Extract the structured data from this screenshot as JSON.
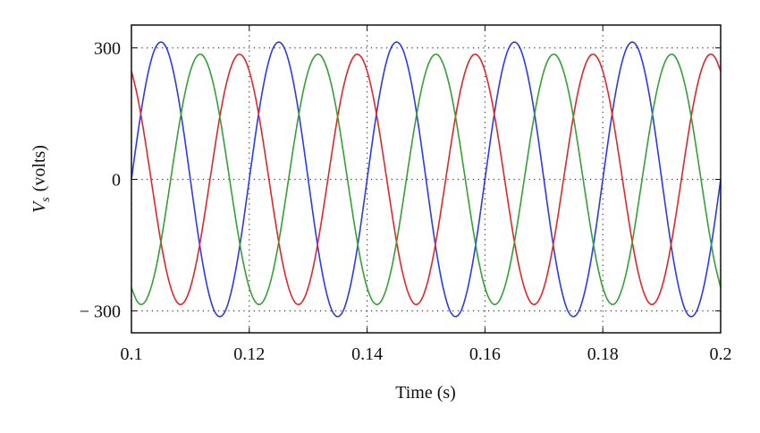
{
  "chart_data": {
    "type": "line",
    "xlabel": "Time (s)",
    "ylabel": {
      "symbol": "V",
      "subscript": "s",
      "unit": "(volts)"
    },
    "xlim": [
      0.1,
      0.2
    ],
    "xticks": [
      0.1,
      0.12,
      0.14,
      0.16,
      0.18,
      0.2
    ],
    "ylim": [
      -350,
      352
    ],
    "yticks": [
      {
        "value": -300,
        "label": "− 300"
      },
      0,
      300
    ],
    "grid": true,
    "x": [
      0.1,
      0.101,
      0.102,
      0.103,
      0.104,
      0.105,
      0.106,
      0.107,
      0.108,
      0.109,
      0.11,
      0.111,
      0.112,
      0.113,
      0.114,
      0.115,
      0.116,
      0.117,
      0.118,
      0.119,
      0.12,
      0.121,
      0.122,
      0.123,
      0.124,
      0.125,
      0.126,
      0.127,
      0.128,
      0.129,
      0.13,
      0.131,
      0.132,
      0.133,
      0.134,
      0.135,
      0.136,
      0.137,
      0.138,
      0.139,
      0.14,
      0.141,
      0.142,
      0.143,
      0.144,
      0.145,
      0.146,
      0.147,
      0.148,
      0.149,
      0.15,
      0.151,
      0.152,
      0.153,
      0.154,
      0.155,
      0.156,
      0.157,
      0.158,
      0.159,
      0.16,
      0.161,
      0.162,
      0.163,
      0.164,
      0.165,
      0.166,
      0.167,
      0.168,
      0.169,
      0.17,
      0.171,
      0.172,
      0.173,
      0.174,
      0.175,
      0.176,
      0.177,
      0.178,
      0.179,
      0.18,
      0.181,
      0.182,
      0.183,
      0.184,
      0.185,
      0.186,
      0.187,
      0.188,
      0.189,
      0.19,
      0.191,
      0.192,
      0.193,
      0.194,
      0.195,
      0.196,
      0.197,
      0.198,
      0.199,
      0.2
    ],
    "series": [
      {
        "color": "#2b3af0",
        "values": [
          0,
          97,
          184,
          253,
          298,
          313,
          298,
          253,
          184,
          97,
          0,
          -97,
          -184,
          -253,
          -298,
          -313,
          -298,
          -253,
          -184,
          -97,
          0,
          97,
          184,
          253,
          298,
          313,
          298,
          253,
          184,
          97,
          0,
          -97,
          -184,
          -253,
          -298,
          -313,
          -298,
          -253,
          -184,
          -97,
          0,
          97,
          184,
          253,
          298,
          313,
          298,
          253,
          184,
          97,
          0,
          -97,
          -184,
          -253,
          -298,
          -313,
          -298,
          -253,
          -184,
          -97,
          0,
          97,
          184,
          253,
          298,
          313,
          298,
          253,
          184,
          97,
          0,
          -97,
          -184,
          -253,
          -298,
          -313,
          -298,
          -253,
          -184,
          -97,
          0,
          97,
          184,
          253,
          298,
          313,
          298,
          253,
          184,
          97,
          0,
          -97,
          -184,
          -253,
          -298,
          -313,
          -298,
          -253,
          -184,
          -97,
          0
        ]
      },
      {
        "color": "#e3262b",
        "values": [
          247,
          191,
          116,
          30,
          -59,
          -143,
          -212,
          -260,
          -284,
          -279,
          -247,
          -191,
          -116,
          -30,
          59,
          143,
          212,
          260,
          284,
          279,
          247,
          191,
          116,
          30,
          -59,
          -143,
          -212,
          -260,
          -284,
          -279,
          -247,
          -191,
          -116,
          -30,
          59,
          143,
          212,
          260,
          284,
          279,
          247,
          191,
          116,
          30,
          -59,
          -143,
          -212,
          -260,
          -284,
          -279,
          -247,
          -191,
          -116,
          -30,
          59,
          143,
          212,
          260,
          284,
          279,
          247,
          191,
          116,
          30,
          -59,
          -143,
          -212,
          -260,
          -284,
          -279,
          -247,
          -191,
          -116,
          -30,
          59,
          143,
          212,
          260,
          284,
          279,
          247,
          191,
          116,
          30,
          -59,
          -143,
          -212,
          -260,
          -284,
          -279,
          -247,
          -191,
          -116,
          -30,
          59,
          143,
          212,
          260,
          284,
          279,
          247
        ]
      },
      {
        "color": "#33a135",
        "values": [
          -247,
          -279,
          -284,
          -260,
          -212,
          -143,
          -59,
          30,
          116,
          191,
          247,
          279,
          284,
          260,
          212,
          143,
          59,
          -30,
          -116,
          -191,
          -247,
          -279,
          -284,
          -260,
          -212,
          -143,
          -59,
          30,
          116,
          191,
          247,
          279,
          284,
          260,
          212,
          143,
          59,
          -30,
          -116,
          -191,
          -247,
          -279,
          -284,
          -260,
          -212,
          -143,
          -59,
          30,
          116,
          191,
          247,
          279,
          284,
          260,
          212,
          143,
          59,
          -30,
          -116,
          -191,
          -247,
          -279,
          -284,
          -260,
          -212,
          -143,
          -59,
          30,
          116,
          191,
          247,
          279,
          284,
          260,
          212,
          143,
          59,
          -30,
          -116,
          -191,
          -247,
          -279,
          -284,
          -260,
          -212,
          -143,
          -59,
          30,
          116,
          191,
          247,
          279,
          284,
          260,
          212,
          143,
          59,
          -30,
          -116,
          -191,
          -247
        ]
      }
    ]
  }
}
